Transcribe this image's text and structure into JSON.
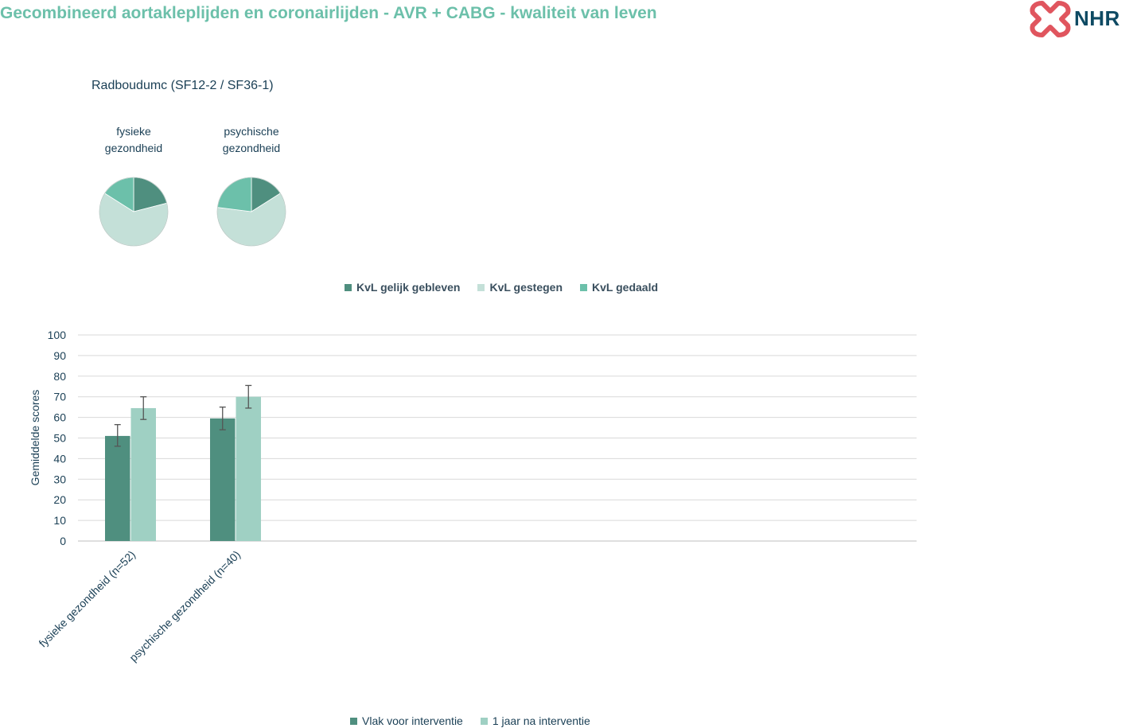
{
  "header": {
    "title": "Gecombineerd aortakleplijden en coronairlijden - AVR + CABG - kwaliteit van leven",
    "title_color": "#6cc0aa",
    "logo": {
      "text": "NHR",
      "icon": "nhr-cross-logo-icon",
      "icon_color": "#e0555e",
      "text_color": "#0e4a63"
    }
  },
  "subtitle": "Radboudumc (SF12-2 / SF36-1)",
  "chart_data": [
    {
      "type": "pie",
      "title": "",
      "categories": [
        "KvL gelijk gebleven",
        "KvL gestegen",
        "KvL gedaald"
      ],
      "colors": [
        "#4f8f7f",
        "#c4e0d8",
        "#6cc0aa"
      ],
      "charts": [
        {
          "label_lines": [
            "fysieke",
            "gezondheid"
          ],
          "values": [
            21,
            63,
            16
          ]
        },
        {
          "label_lines": [
            "psychische",
            "gezondheid"
          ],
          "values": [
            16,
            61,
            23
          ]
        }
      ],
      "legend_position": "bottom"
    },
    {
      "type": "bar",
      "title": "",
      "categories": [
        "fysieke gezondheid (n=52)",
        "psychische gezondheid (n=40)"
      ],
      "series": [
        {
          "name": "Vlak voor interventie",
          "color": "#4f8f7f",
          "values": [
            51,
            59.5
          ],
          "error_low": [
            46,
            54
          ],
          "error_high": [
            56.5,
            65
          ]
        },
        {
          "name": "1 jaar na interventie",
          "color": "#9fd0c3",
          "values": [
            64.5,
            70
          ],
          "error_low": [
            59,
            64.5
          ],
          "error_high": [
            70,
            75.5
          ]
        }
      ],
      "xlabel": "",
      "ylabel": "Gemiddelde scores",
      "ylim": [
        0,
        100
      ],
      "yticks": [
        0,
        10,
        20,
        30,
        40,
        50,
        60,
        70,
        80,
        90,
        100
      ],
      "grid": true,
      "legend_position": "bottom"
    }
  ]
}
